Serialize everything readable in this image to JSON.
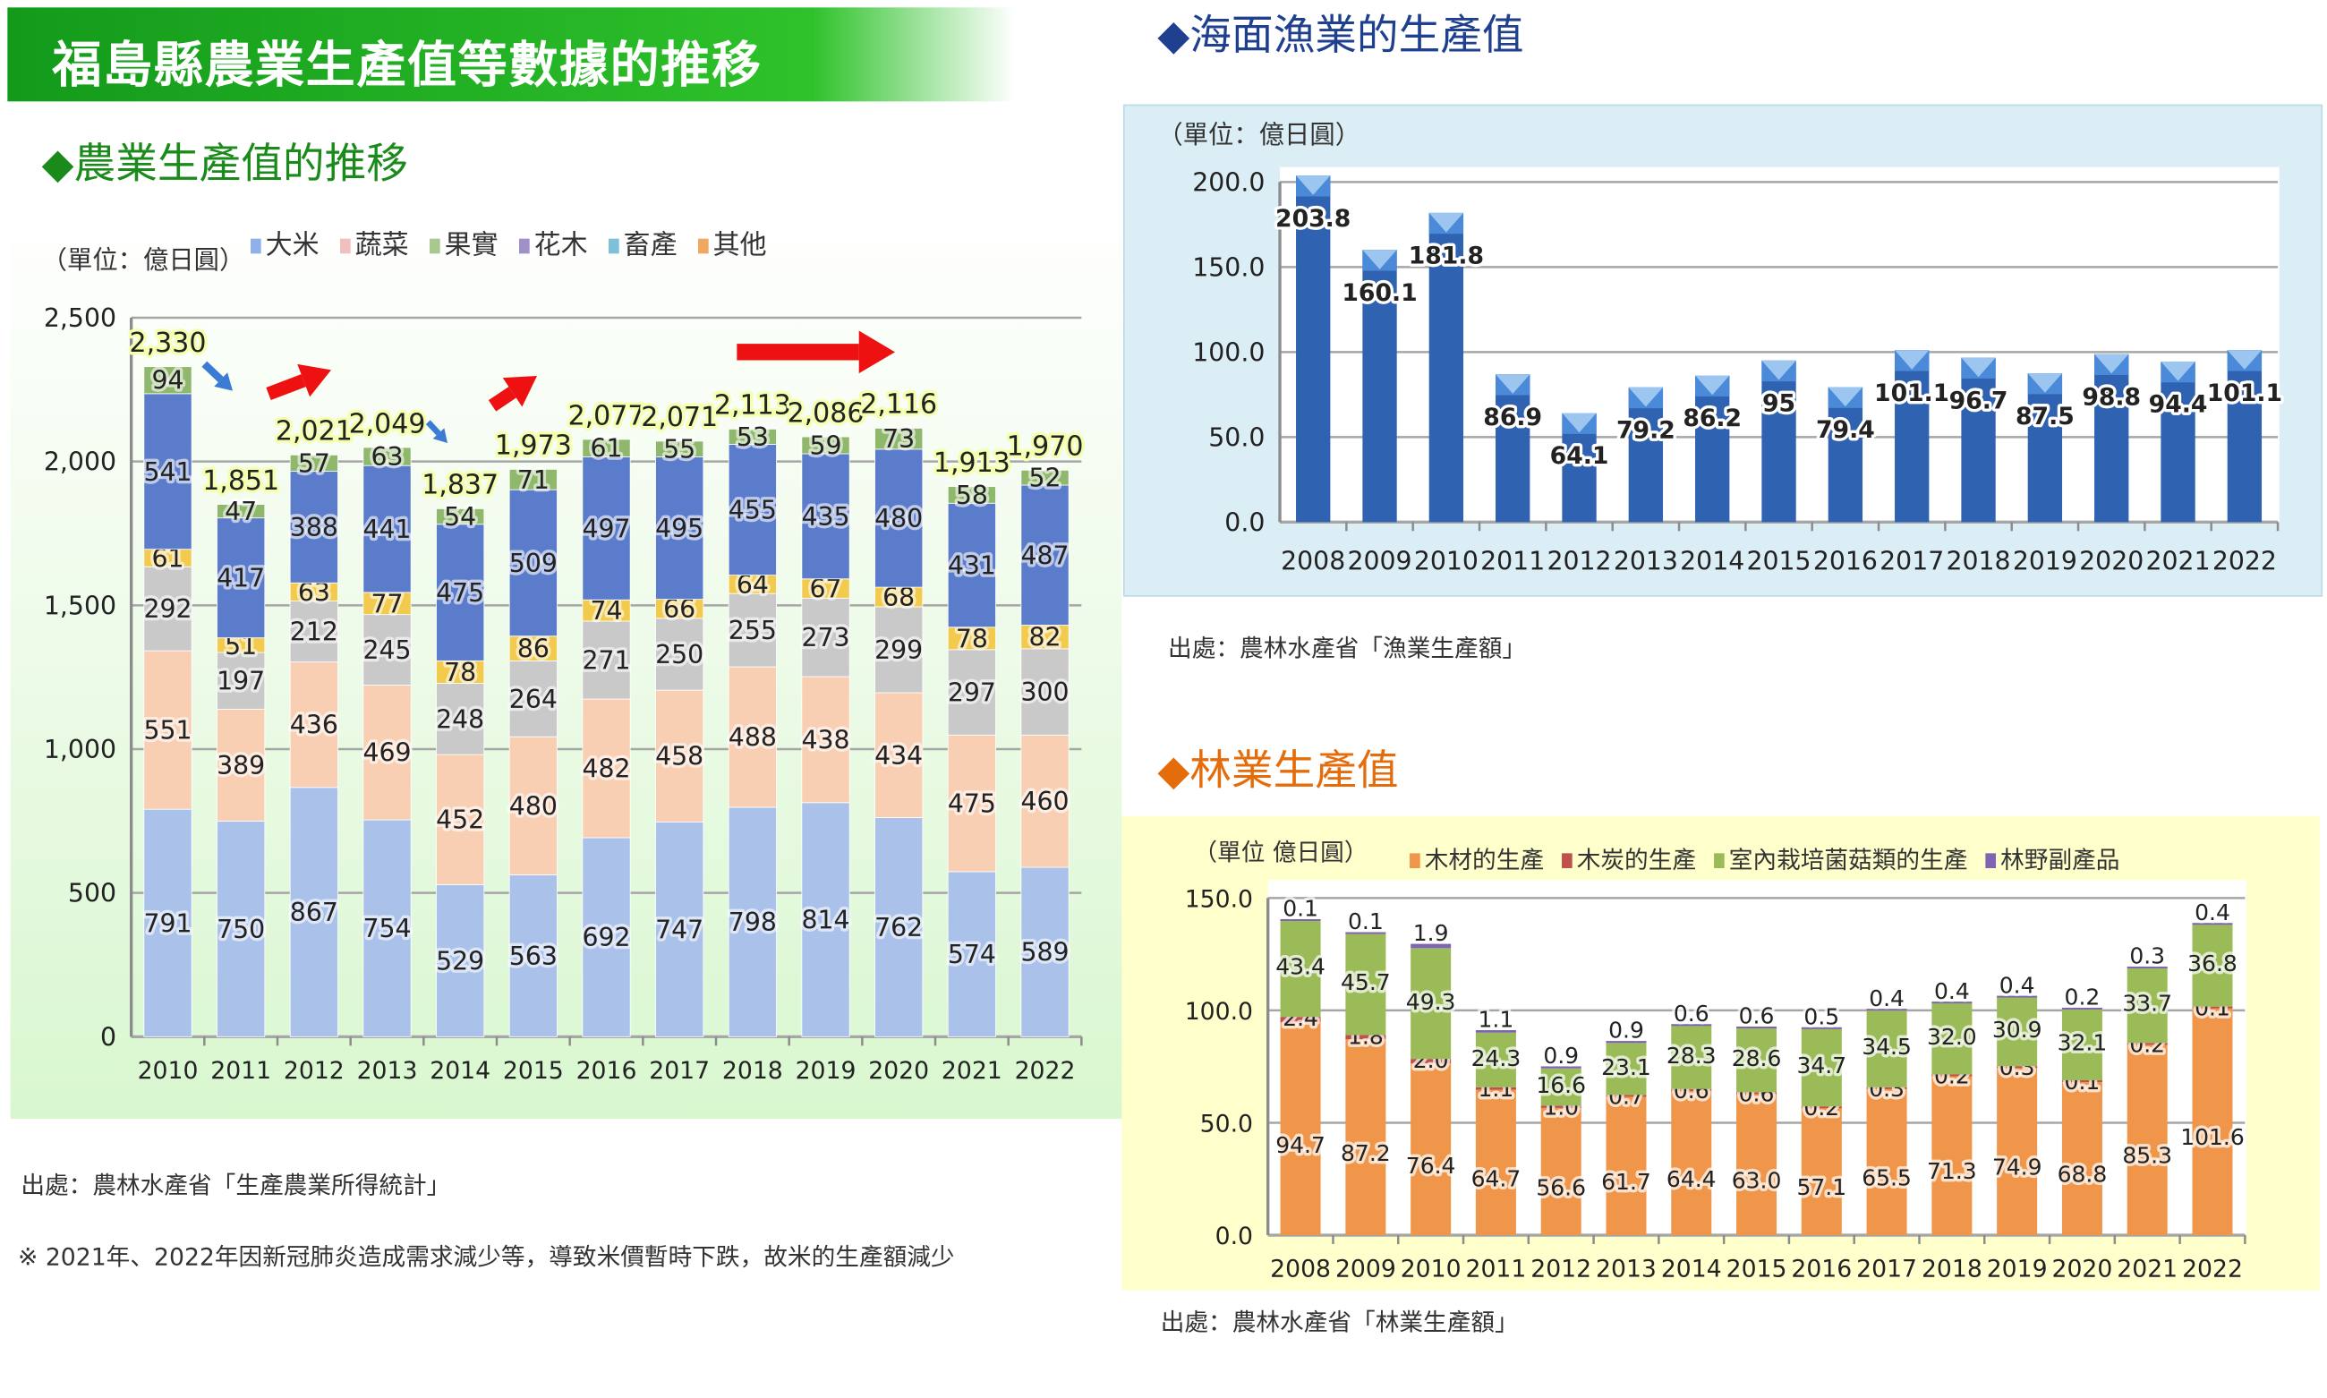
{
  "title": "福島縣農業生產值等數據的推移",
  "agriculture": {
    "heading": "◆農業生產值的推移",
    "unit": "（單位：億日圓）",
    "source": "出處：農林水產省「生產農業所得統計」",
    "note": "※ 2021年、2022年因新冠肺炎造成需求減少等，導致米價暫時下跌，故米的生產額減少"
  },
  "fishery": {
    "heading": "◆海面漁業的生產值",
    "unit": "（單位：億日圓）",
    "source": "出處：農林水產省「漁業生產額」"
  },
  "forestry": {
    "heading": "◆林業生產值",
    "unit": "（單位 億日圓）",
    "source": "出處：農林水產省「林業生產額」"
  },
  "colors": {
    "agri_heading": "#1a8a1a",
    "fish_heading": "#1f3f8f",
    "forest_heading": "#e46c0a",
    "trend_arrow_red": "#ee1111",
    "trend_arrow_blue": "#3a7bd5"
  },
  "chart_data": [
    {
      "type": "bar",
      "stacked": true,
      "title": "農業生產值的推移",
      "ylabel": "（單位：億日圓）",
      "ylim": [
        0,
        2500
      ],
      "yticks": [
        "0",
        "500",
        "1,000",
        "1,500",
        "2,000",
        "2,500"
      ],
      "grid": true,
      "legend": "top",
      "categories": [
        "2010",
        "2011",
        "2012",
        "2013",
        "2014",
        "2015",
        "2016",
        "2017",
        "2018",
        "2019",
        "2020",
        "2021",
        "2022"
      ],
      "totals": [
        "2,330",
        "1,851",
        "2,021",
        "2,049",
        "1,837",
        "1,973",
        "2,077",
        "2,071",
        "2,113",
        "2,086",
        "2,116",
        "1,913",
        "1,970"
      ],
      "series": [
        {
          "name": "大米",
          "color": "#aac1ea",
          "legend_color": "#8fb0e8",
          "values": [
            791,
            750,
            867,
            754,
            529,
            563,
            692,
            747,
            798,
            814,
            762,
            574,
            589
          ]
        },
        {
          "name": "蔬菜",
          "color": "#f8cfb3",
          "legend_color": "#f0c0c0",
          "values": [
            551,
            389,
            436,
            469,
            452,
            480,
            482,
            458,
            488,
            438,
            434,
            475,
            460
          ]
        },
        {
          "name": "果實",
          "color": "#c9c9c9",
          "legend_color": "#a8c890",
          "values": [
            292,
            197,
            212,
            245,
            248,
            264,
            271,
            250,
            255,
            273,
            299,
            297,
            300
          ]
        },
        {
          "name": "花木",
          "color": "#f2cb4e",
          "legend_color": "#a090c8",
          "values": [
            61,
            51,
            63,
            77,
            78,
            86,
            74,
            66,
            64,
            67,
            68,
            78,
            82
          ]
        },
        {
          "name": "畜產",
          "color": "#5b7cca",
          "legend_color": "#7ec0d8",
          "values": [
            541,
            417,
            388,
            441,
            475,
            509,
            497,
            495,
            455,
            435,
            480,
            431,
            487
          ]
        },
        {
          "name": "其他",
          "color": "#8fb86c",
          "legend_color": "#f0a860",
          "values": [
            94,
            47,
            57,
            63,
            54,
            71,
            61,
            55,
            53,
            59,
            73,
            58,
            52
          ]
        }
      ],
      "annotations": [
        "decrease-arrow 2010-2011",
        "increase-arrow 2011-2012",
        "decrease-arrow 2013-2014",
        "increase-arrow 2014-2015",
        "increase-arrow 2018-2020"
      ]
    },
    {
      "type": "bar",
      "title": "海面漁業的生產值",
      "ylabel": "（單位：億日圓）",
      "ylim": [
        0,
        200
      ],
      "yticks": [
        "0.0",
        "50.0",
        "100.0",
        "150.0",
        "200.0"
      ],
      "grid": true,
      "color": "#2f62b0",
      "categories": [
        "2008",
        "2009",
        "2010",
        "2011",
        "2012",
        "2013",
        "2014",
        "2015",
        "2016",
        "2017",
        "2018",
        "2019",
        "2020",
        "2021",
        "2022"
      ],
      "values": [
        203.8,
        160.1,
        181.8,
        86.9,
        64.1,
        79.2,
        86.2,
        95,
        79.4,
        101.1,
        96.7,
        87.5,
        98.8,
        94.4,
        101.1
      ],
      "labels": [
        "203.8",
        "160.1",
        "181.8",
        "86.9",
        "64.1",
        "79.2",
        "86.2",
        "95",
        "79.4",
        "101.1",
        "96.7",
        "87.5",
        "98.8",
        "94.4",
        "101.1"
      ]
    },
    {
      "type": "bar",
      "stacked": true,
      "title": "林業生產值",
      "ylabel": "（單位 億日圓）",
      "ylim": [
        0,
        150
      ],
      "yticks": [
        "0.0",
        "50.0",
        "100.0",
        "150.0"
      ],
      "grid": true,
      "legend": "top",
      "categories": [
        "2008",
        "2009",
        "2010",
        "2011",
        "2012",
        "2013",
        "2014",
        "2015",
        "2016",
        "2017",
        "2018",
        "2019",
        "2020",
        "2021",
        "2022"
      ],
      "series": [
        {
          "name": "木材的生產",
          "color": "#f0964a",
          "values": [
            94.7,
            87.2,
            76.4,
            64.7,
            56.6,
            61.7,
            64.4,
            63.0,
            57.1,
            65.5,
            71.3,
            74.9,
            68.8,
            85.3,
            101.6
          ]
        },
        {
          "name": "木炭的生產",
          "color": "#c0504d",
          "values": [
            2.4,
            1.8,
            2.0,
            1.1,
            1.0,
            0.7,
            0.6,
            0.6,
            0.2,
            0.3,
            0.2,
            0.3,
            0.1,
            0.2,
            0.1
          ]
        },
        {
          "name": "室內栽培菌菇類的生產",
          "color": "#9bbb59",
          "values": [
            43.4,
            45.7,
            49.3,
            24.3,
            16.6,
            23.1,
            28.3,
            28.6,
            34.7,
            34.5,
            32.0,
            30.9,
            32.1,
            33.7,
            36.8
          ]
        },
        {
          "name": "林野副產品",
          "color": "#7f64b4",
          "values": [
            0.1,
            0.1,
            1.9,
            1.1,
            0.9,
            0.9,
            0.6,
            0.6,
            0.5,
            0.4,
            0.4,
            0.4,
            0.2,
            0.3,
            0.4
          ]
        }
      ]
    }
  ]
}
